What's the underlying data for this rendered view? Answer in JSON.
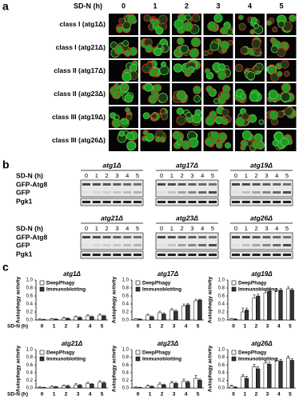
{
  "panel_a": {
    "label": "a",
    "xlabel": "SD-N (h)",
    "columns": [
      "0",
      "1",
      "2",
      "3",
      "4",
      "5"
    ],
    "rows": [
      "class I (atg1Δ)",
      "class I (atg21Δ)",
      "class II (atg17Δ)",
      "class II (atg23Δ)",
      "class III (atg19Δ)",
      "class III (atg26Δ)"
    ]
  },
  "panel_b": {
    "label": "b",
    "xlabel": "SD-N (h)",
    "lanes": [
      "0",
      "1",
      "2",
      "3",
      "4",
      "5"
    ],
    "bands": [
      "GFP-Atg8",
      "GFP",
      "Pgk1"
    ],
    "groups": [
      [
        "atg1Δ",
        "atg17Δ",
        "atg19Δ"
      ],
      [
        "atg21Δ",
        "atg23Δ",
        "atg26Δ"
      ]
    ]
  },
  "panel_c": {
    "label": "c"
  },
  "chart_data": [
    {
      "type": "bar",
      "title": "atg1Δ",
      "xlabel": "SD-N (h)",
      "ylabel": "Autophagy activity",
      "categories": [
        "0",
        "1",
        "2",
        "3",
        "4",
        "5"
      ],
      "ylim": [
        0,
        1
      ],
      "yticks": [
        {
          "value": 0,
          "label": "0.0"
        },
        0.2,
        0.4,
        0.6,
        0.8,
        {
          "value": 1,
          "label": "1.0"
        }
      ],
      "series": [
        {
          "name": "DeepPhagy",
          "color": "#ffffff",
          "values": [
            0.02,
            0.03,
            0.05,
            0.08,
            0.1,
            0.12
          ],
          "errors": [
            0.01,
            0.01,
            0.02,
            0.02,
            0.03,
            0.03
          ]
        },
        {
          "name": "Immunoblotting",
          "color": "#333333",
          "values": [
            0.01,
            0.02,
            0.04,
            0.06,
            0.08,
            0.1
          ],
          "errors": [
            0.01,
            0.01,
            0.01,
            0.02,
            0.02,
            0.02
          ]
        }
      ]
    },
    {
      "type": "bar",
      "title": "atg17Δ",
      "ylabel": "Autophagy activity",
      "categories": [
        "0",
        "1",
        "2",
        "3",
        "4",
        "5"
      ],
      "ylim": [
        0,
        1
      ],
      "yticks": [
        {
          "value": 0,
          "label": "0.0"
        },
        0.2,
        0.4,
        0.6,
        0.8,
        {
          "value": 1,
          "label": "1.0"
        }
      ],
      "series": [
        {
          "name": "DeepPhagy",
          "color": "#ffffff",
          "values": [
            0.03,
            0.12,
            0.18,
            0.25,
            0.35,
            0.48
          ],
          "errors": [
            0.01,
            0.03,
            0.04,
            0.04,
            0.05,
            0.04
          ]
        },
        {
          "name": "Immunoblotting",
          "color": "#333333",
          "values": [
            0.02,
            0.08,
            0.15,
            0.22,
            0.38,
            0.5
          ],
          "errors": [
            0.01,
            0.02,
            0.03,
            0.03,
            0.03,
            0.02
          ]
        }
      ]
    },
    {
      "type": "bar",
      "title": "atg19Δ",
      "ylabel": "Autophagy activity",
      "categories": [
        "0",
        "1",
        "2",
        "3",
        "4",
        "5"
      ],
      "ylim": [
        0,
        1
      ],
      "yticks": [
        {
          "value": 0,
          "label": "0.0"
        },
        0.2,
        0.4,
        0.6,
        0.8,
        {
          "value": 1,
          "label": "1.0"
        }
      ],
      "series": [
        {
          "name": "DeepPhagy",
          "color": "#ffffff",
          "values": [
            0.03,
            0.2,
            0.55,
            0.68,
            0.72,
            0.78
          ],
          "errors": [
            0.01,
            0.1,
            0.08,
            0.06,
            0.05,
            0.05
          ]
        },
        {
          "name": "Immunoblotting",
          "color": "#333333",
          "values": [
            0.02,
            0.25,
            0.6,
            0.72,
            0.75,
            0.75
          ],
          "errors": [
            0.01,
            0.05,
            0.05,
            0.04,
            0.04,
            0.04
          ]
        }
      ]
    },
    {
      "type": "bar",
      "title": "atg21Δ",
      "xlabel": "SD-N (h)",
      "ylabel": "Autophagy activity",
      "categories": [
        "0",
        "1",
        "2",
        "3",
        "4",
        "5"
      ],
      "ylim": [
        0,
        1
      ],
      "yticks": [
        {
          "value": 0,
          "label": "0.0"
        },
        0.2,
        0.4,
        0.6,
        0.8,
        {
          "value": 1,
          "label": "1.0"
        }
      ],
      "series": [
        {
          "name": "DeepPhagy",
          "color": "#ffffff",
          "values": [
            0.02,
            0.04,
            0.06,
            0.08,
            0.12,
            0.15
          ],
          "errors": [
            0.01,
            0.02,
            0.02,
            0.03,
            0.03,
            0.04
          ]
        },
        {
          "name": "Immunoblotting",
          "color": "#333333",
          "values": [
            0.01,
            0.03,
            0.05,
            0.07,
            0.1,
            0.13
          ],
          "errors": [
            0.01,
            0.01,
            0.02,
            0.02,
            0.02,
            0.03
          ]
        }
      ]
    },
    {
      "type": "bar",
      "title": "atg23Δ",
      "ylabel": "Autophagy activity",
      "categories": [
        "0",
        "1",
        "2",
        "3",
        "4",
        "5"
      ],
      "ylim": [
        0,
        1
      ],
      "yticks": [
        {
          "value": 0,
          "label": "0.0"
        },
        0.2,
        0.4,
        0.6,
        0.8,
        {
          "value": 1,
          "label": "1.0"
        }
      ],
      "series": [
        {
          "name": "DeepPhagy",
          "color": "#ffffff",
          "values": [
            0.02,
            0.05,
            0.1,
            0.13,
            0.18,
            0.25
          ],
          "errors": [
            0.01,
            0.03,
            0.04,
            0.04,
            0.05,
            0.08
          ]
        },
        {
          "name": "Immunoblotting",
          "color": "#333333",
          "values": [
            0.01,
            0.04,
            0.08,
            0.12,
            0.15,
            0.2
          ],
          "errors": [
            0.01,
            0.02,
            0.02,
            0.03,
            0.03,
            0.03
          ]
        }
      ]
    },
    {
      "type": "bar",
      "title": "atg26Δ",
      "ylabel": "Autophagy activity",
      "categories": [
        "0",
        "1",
        "2",
        "3",
        "4",
        "5"
      ],
      "ylim": [
        0,
        1
      ],
      "yticks": [
        {
          "value": 0,
          "label": "0.0"
        },
        0.2,
        0.4,
        0.6,
        0.8,
        {
          "value": 1,
          "label": "1.0"
        }
      ],
      "series": [
        {
          "name": "DeepPhagy",
          "color": "#ffffff",
          "values": [
            0.05,
            0.3,
            0.55,
            0.65,
            0.72,
            0.78
          ],
          "errors": [
            0.02,
            0.05,
            0.06,
            0.06,
            0.05,
            0.05
          ]
        },
        {
          "name": "Immunoblotting",
          "color": "#333333",
          "values": [
            0.02,
            0.25,
            0.5,
            0.62,
            0.7,
            0.72
          ],
          "errors": [
            0.01,
            0.05,
            0.05,
            0.05,
            0.04,
            0.04
          ]
        }
      ]
    }
  ]
}
